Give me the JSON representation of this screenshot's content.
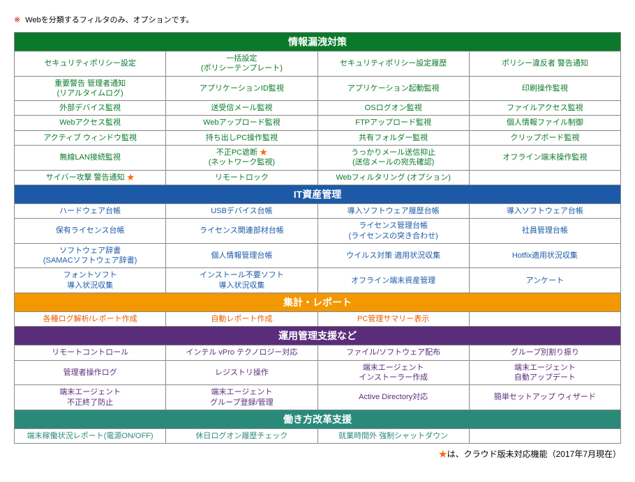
{
  "top_note": {
    "symbol": "※",
    "text": "Webを分類するフィルタのみ、オプションです。"
  },
  "sections": [
    {
      "title": "情報漏洩対策",
      "header_bg": "#0a7a2a",
      "cell_color": "#0a7a2a",
      "rows": [
        [
          {
            "text": "セキュリティポリシー設定"
          },
          {
            "text": "一括設定\n(ポリシーテンプレート)"
          },
          {
            "text": "セキュリティポリシー設定履歴"
          },
          {
            "text": "ポリシー違反者 警告通知"
          }
        ],
        [
          {
            "text": "重要警告 管理者通知\n(リアルタイムログ)"
          },
          {
            "text": "アプリケーションID監視"
          },
          {
            "text": "アプリケーション起動監視"
          },
          {
            "text": "印刷操作監視"
          }
        ],
        [
          {
            "text": "外部デバイス監視"
          },
          {
            "text": "送受信メール監視"
          },
          {
            "text": "OSログオン監視"
          },
          {
            "text": "ファイルアクセス監視"
          }
        ],
        [
          {
            "text": "Webアクセス監視"
          },
          {
            "text": "Webアップロード監視"
          },
          {
            "text": "FTPアップロード監視"
          },
          {
            "text": "個人情報ファイル制御"
          }
        ],
        [
          {
            "text": "アクティブ ウィンドウ監視"
          },
          {
            "text": "持ち出しPC操作監視"
          },
          {
            "text": "共有フォルダー監視"
          },
          {
            "text": "クリップボード監視"
          }
        ],
        [
          {
            "text": "無線LAN接続監視"
          },
          {
            "text": "不正PC遮断 ",
            "star": true,
            "suffix": "\n(ネットワーク監視)"
          },
          {
            "text": "うっかりメール送信抑止\n(送信メールの宛先確認)"
          },
          {
            "text": "オフライン端末操作監視"
          }
        ],
        [
          {
            "text": "サイバー攻撃 警告通知 ",
            "star": true
          },
          {
            "text": "リモートロック"
          },
          {
            "text": "Webフィルタリング (オプション)"
          },
          {
            "text": ""
          }
        ]
      ]
    },
    {
      "title": "IT資産管理",
      "header_bg": "#1c5aa8",
      "cell_color": "#1c5aa8",
      "rows": [
        [
          {
            "text": "ハードウェア台帳"
          },
          {
            "text": "USBデバイス台帳"
          },
          {
            "text": "導入ソフトウェア履歴台帳"
          },
          {
            "text": "導入ソフトウェア台帳"
          }
        ],
        [
          {
            "text": "保有ライセンス台帳"
          },
          {
            "text": "ライセンス関連部材台帳"
          },
          {
            "text": "ライセンス管理台帳\n(ライセンスの突き合わせ)"
          },
          {
            "text": "社員管理台帳"
          }
        ],
        [
          {
            "text": "ソフトウェア辞書\n(SAMACソフトウェア辞書)"
          },
          {
            "text": "個人情報管理台帳"
          },
          {
            "text": "ウイルス対策 適用状況収集"
          },
          {
            "text": "Hotfix適用状況収集"
          }
        ],
        [
          {
            "text": "フォントソフト\n導入状況収集"
          },
          {
            "text": "インストール不要ソフト\n導入状況収集"
          },
          {
            "text": "オフライン端末資産管理"
          },
          {
            "text": "アンケート"
          }
        ]
      ]
    },
    {
      "title": "集計・レポート",
      "header_bg": "#f39800",
      "cell_color": "#e85a00",
      "rows": [
        [
          {
            "text": "各種ログ解析/レポート作成"
          },
          {
            "text": "自動レポート作成"
          },
          {
            "text": "PC管理サマリー表示"
          },
          {
            "text": ""
          }
        ]
      ]
    },
    {
      "title": "運用管理支援など",
      "header_bg": "#5a2d7a",
      "cell_color": "#5a2d7a",
      "rows": [
        [
          {
            "text": "リモートコントロール"
          },
          {
            "text": "インテル vPro テクノロジー対応"
          },
          {
            "text": "ファイル/ソフトウェア配布"
          },
          {
            "text": "グループ別割り振り"
          }
        ],
        [
          {
            "text": "管理者操作ログ"
          },
          {
            "text": "レジストリ操作"
          },
          {
            "text": "端末エージェント\nインストーラー作成"
          },
          {
            "text": "端末エージェント\n自動アップデート"
          }
        ],
        [
          {
            "text": "端末エージェント\n不正終了防止"
          },
          {
            "text": "端末エージェント\nグループ登録/管理"
          },
          {
            "text": "Active Directory対応"
          },
          {
            "text": "簡単セットアップ ウィザード"
          }
        ]
      ]
    },
    {
      "title": "働き方改革支援",
      "header_bg": "#2a8a7a",
      "cell_color": "#2a8a7a",
      "rows": [
        [
          {
            "text": "端末稼働状況レポート(電源ON/OFF)"
          },
          {
            "text": "休日ログオン履歴チェック"
          },
          {
            "text": "就業時間外 強制シャットダウン"
          },
          {
            "text": ""
          }
        ]
      ]
    }
  ],
  "footer": {
    "star": "★",
    "text": "は、クラウド版未対応機能（2017年7月現在）"
  }
}
